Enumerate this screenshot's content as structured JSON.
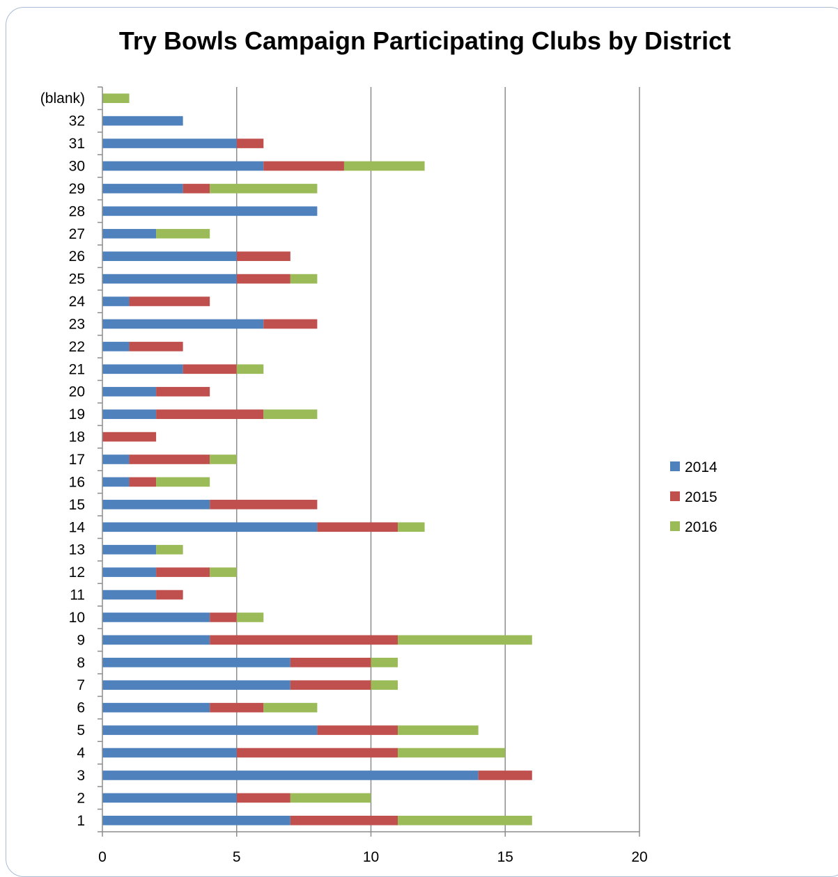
{
  "chart_data": {
    "type": "bar",
    "orientation": "horizontal",
    "stacked": true,
    "title": "Try Bowls Campaign Participating Clubs by District",
    "xlabel": "",
    "ylabel": "",
    "xlim": [
      0,
      20
    ],
    "x_ticks": [
      0,
      5,
      10,
      15,
      20
    ],
    "grid": "vertical",
    "legend_placement": "right",
    "categories": [
      "1",
      "2",
      "3",
      "4",
      "5",
      "6",
      "7",
      "8",
      "9",
      "10",
      "11",
      "12",
      "13",
      "14",
      "15",
      "16",
      "17",
      "18",
      "19",
      "20",
      "21",
      "22",
      "23",
      "24",
      "25",
      "26",
      "27",
      "28",
      "29",
      "30",
      "31",
      "32",
      "(blank)"
    ],
    "series": [
      {
        "name": "2014",
        "color": "#4f81bd",
        "values": [
          7,
          5,
          14,
          5,
          8,
          4,
          7,
          7,
          4,
          4,
          2,
          2,
          2,
          8,
          4,
          1,
          1,
          0,
          2,
          2,
          3,
          1,
          6,
          1,
          5,
          5,
          2,
          8,
          3,
          6,
          5,
          3,
          0
        ]
      },
      {
        "name": "2015",
        "color": "#c0504d",
        "values": [
          4,
          2,
          2,
          6,
          3,
          2,
          3,
          3,
          7,
          1,
          1,
          2,
          0,
          3,
          4,
          1,
          3,
          2,
          4,
          2,
          2,
          2,
          2,
          3,
          2,
          2,
          0,
          0,
          1,
          3,
          1,
          0,
          0
        ]
      },
      {
        "name": "2016",
        "color": "#9bbb59",
        "values": [
          5,
          3,
          0,
          4,
          3,
          2,
          1,
          1,
          5,
          1,
          0,
          1,
          1,
          1,
          0,
          2,
          1,
          0,
          2,
          0,
          1,
          0,
          0,
          0,
          1,
          0,
          2,
          0,
          4,
          3,
          0,
          0,
          1
        ]
      }
    ]
  }
}
